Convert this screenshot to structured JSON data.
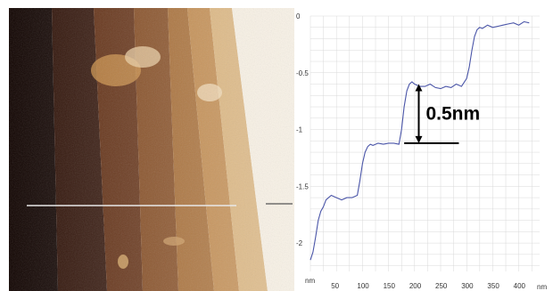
{
  "colors": {
    "trace": "#4a55a8",
    "grid": "#d9d9d9",
    "annotation": "#000000",
    "afm_dark": "#140400",
    "afm_light": "#c9a060",
    "scan_line": "#e8e8e8"
  },
  "afm_image": {
    "description_icon": "afm-topography-image",
    "terrace_colors": [
      "#100300",
      "#2b0d02",
      "#5a2508",
      "#7a3d10",
      "#9c5c1e",
      "#b87a35",
      "#d4a767",
      "#f5ecdc"
    ]
  },
  "chart_data": {
    "type": "line",
    "title": "",
    "xlabel": "",
    "ylabel": "",
    "x_unit_label": "nm",
    "y_unit_label": "nm",
    "xlim": [
      0,
      440
    ],
    "ylim": [
      -2.25,
      0
    ],
    "x_ticks": [
      50,
      100,
      150,
      200,
      250,
      300,
      350,
      400
    ],
    "y_ticks": [
      0,
      -0.5,
      -1,
      -1.5,
      -2
    ],
    "y_tick_labels": [
      "0",
      "-0.5",
      "-1",
      "-1.5",
      "-2"
    ],
    "grid": true,
    "series": [
      {
        "name": "",
        "x": [
          0,
          5,
          10,
          15,
          20,
          25,
          30,
          35,
          40,
          50,
          60,
          70,
          80,
          90,
          95,
          100,
          105,
          110,
          115,
          120,
          130,
          140,
          150,
          160,
          170,
          175,
          180,
          185,
          190,
          195,
          200,
          210,
          220,
          230,
          240,
          250,
          260,
          270,
          280,
          290,
          300,
          305,
          310,
          315,
          320,
          325,
          330,
          340,
          350,
          360,
          370,
          380,
          390,
          400,
          410,
          420
        ],
        "y": [
          -2.15,
          -2.08,
          -1.95,
          -1.8,
          -1.72,
          -1.68,
          -1.62,
          -1.6,
          -1.58,
          -1.6,
          -1.62,
          -1.6,
          -1.6,
          -1.58,
          -1.45,
          -1.3,
          -1.2,
          -1.15,
          -1.13,
          -1.14,
          -1.12,
          -1.13,
          -1.12,
          -1.12,
          -1.13,
          -1.0,
          -0.8,
          -0.66,
          -0.6,
          -0.58,
          -0.6,
          -0.62,
          -0.62,
          -0.6,
          -0.63,
          -0.64,
          -0.62,
          -0.63,
          -0.6,
          -0.62,
          -0.55,
          -0.45,
          -0.3,
          -0.18,
          -0.12,
          -0.1,
          -0.11,
          -0.08,
          -0.1,
          -0.09,
          -0.08,
          -0.07,
          -0.06,
          -0.08,
          -0.05,
          -0.06
        ]
      }
    ],
    "annotation": {
      "label": "0.5nm",
      "arrow_x": 208,
      "arrow_y_top": -0.6,
      "arrow_y_bottom": -1.12,
      "line_x_start": 180,
      "line_x_end": 285,
      "line_y": -1.12
    }
  }
}
